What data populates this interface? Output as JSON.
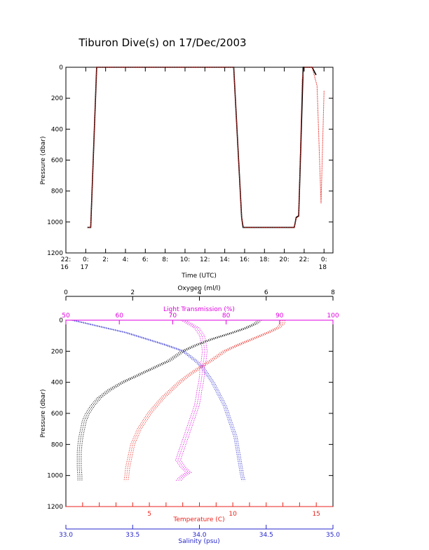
{
  "title": "Tiburon Dive(s) on 17/Dec/2003",
  "colors": {
    "black": "#000000",
    "red": "#e8231c",
    "blue": "#2424cc",
    "magenta": "#e000e0"
  },
  "chart_data": [
    {
      "type": "line",
      "panel": "time-series",
      "xlabel": "Time (UTC)",
      "ylabel": "Pressure (dbar)",
      "xlim": [
        -2,
        24.9
      ],
      "ylim": [
        1200,
        0
      ],
      "x_unit": "hours since 00:00 on 17/Dec (negative = 16/Dec)",
      "x_ticks": [
        {
          "x": -2,
          "line1": "22:",
          "line2": "16"
        },
        {
          "x": 0,
          "line1": "0:",
          "line2": "17"
        },
        {
          "x": 2,
          "line1": "2:",
          "line2": ""
        },
        {
          "x": 4,
          "line1": "4:",
          "line2": ""
        },
        {
          "x": 6,
          "line1": "6:",
          "line2": ""
        },
        {
          "x": 8,
          "line1": "8:",
          "line2": ""
        },
        {
          "x": 10,
          "line1": "10:",
          "line2": ""
        },
        {
          "x": 12,
          "line1": "12:",
          "line2": ""
        },
        {
          "x": 14,
          "line1": "14:",
          "line2": ""
        },
        {
          "x": 16,
          "line1": "16:",
          "line2": ""
        },
        {
          "x": 18,
          "line1": "18:",
          "line2": ""
        },
        {
          "x": 20,
          "line1": "20:",
          "line2": ""
        },
        {
          "x": 22,
          "line1": "22:",
          "line2": ""
        },
        {
          "x": 24,
          "line1": "0:",
          "line2": "18"
        }
      ],
      "y_ticks": [
        0,
        200,
        400,
        600,
        800,
        1000,
        1200
      ],
      "series": [
        {
          "color": "#000000",
          "x": [
            0.15,
            0.5,
            1.1,
            14.9,
            15.7,
            15.85,
            21.0,
            21.2,
            21.45,
            21.9,
            22.8,
            23.2
          ],
          "y": [
            1035,
            1035,
            0,
            0,
            970,
            1035,
            1035,
            970,
            960,
            0,
            0,
            50
          ]
        },
        {
          "color": "#e8231c",
          "x": [
            0.15,
            0.5,
            1.1,
            14.9,
            15.7,
            15.9,
            21.0,
            21.2,
            21.45,
            21.8,
            22.0,
            22.8,
            23.3,
            23.7,
            24.0
          ],
          "y": [
            1035,
            1035,
            0,
            0,
            970,
            1035,
            1035,
            975,
            965,
            80,
            0,
            0,
            120,
            880,
            150
          ]
        }
      ]
    },
    {
      "type": "scatter",
      "panel": "profiles",
      "ylabel": "Pressure (dbar)",
      "ylim": [
        1200,
        0
      ],
      "y_ticks": [
        0,
        200,
        400,
        600,
        800,
        1000,
        1200
      ],
      "axes": [
        {
          "name": "Oxygen (ml/l)",
          "color": "#000000",
          "position": "top",
          "range": [
            0,
            8
          ],
          "ticks": [
            "0",
            "2",
            "4",
            "6",
            "8"
          ]
        },
        {
          "name": "Light Transmission (%)",
          "color": "#e000e0",
          "position": "top-inner",
          "range": [
            50,
            100
          ],
          "ticks": [
            "50",
            "60",
            "70",
            "80",
            "90",
            "100"
          ]
        },
        {
          "name": "Temperature (C)",
          "color": "#e8231c",
          "position": "bottom",
          "range": [
            0,
            16
          ],
          "ticks": [
            "5",
            "10",
            "15"
          ],
          "tick_values": [
            5,
            10,
            15
          ]
        },
        {
          "name": "Salinity (psu)",
          "color": "#2424cc",
          "position": "bottom-outer",
          "range": [
            33.0,
            35.0
          ],
          "ticks": [
            "33.0",
            "33.5",
            "34.0",
            "34.5",
            "35.0"
          ]
        }
      ],
      "series": [
        {
          "variable": "oxygen",
          "color": "#000000",
          "pressure": [
            0,
            20,
            50,
            80,
            120,
            160,
            200,
            260,
            300,
            350,
            400,
            450,
            500,
            550,
            600,
            650,
            700,
            750,
            800,
            850,
            900,
            950,
            1000,
            1035
          ],
          "value": [
            5.8,
            5.7,
            5.4,
            5.0,
            4.4,
            3.9,
            3.5,
            3.1,
            2.7,
            2.2,
            1.7,
            1.3,
            1.0,
            0.8,
            0.65,
            0.55,
            0.5,
            0.45,
            0.42,
            0.4,
            0.4,
            0.4,
            0.42,
            0.42
          ]
        },
        {
          "variable": "temperature",
          "color": "#e8231c",
          "pressure": [
            0,
            20,
            50,
            80,
            120,
            160,
            200,
            260,
            300,
            350,
            400,
            450,
            500,
            550,
            600,
            650,
            700,
            750,
            800,
            850,
            900,
            950,
            1000,
            1035
          ],
          "value": [
            13.0,
            13.0,
            12.7,
            12.1,
            11.2,
            10.3,
            9.5,
            8.7,
            8.1,
            7.4,
            6.8,
            6.3,
            5.8,
            5.4,
            5.0,
            4.7,
            4.4,
            4.2,
            4.0,
            3.9,
            3.8,
            3.7,
            3.65,
            3.6
          ]
        },
        {
          "variable": "salinity",
          "color": "#2424cc",
          "pressure": [
            0,
            20,
            50,
            80,
            120,
            160,
            200,
            260,
            300,
            350,
            400,
            450,
            500,
            550,
            600,
            650,
            700,
            750,
            800,
            850,
            900,
            950,
            1000,
            1035
          ],
          "value": [
            33.05,
            33.15,
            33.3,
            33.45,
            33.6,
            33.75,
            33.88,
            33.97,
            34.02,
            34.06,
            34.1,
            34.13,
            34.16,
            34.19,
            34.21,
            34.23,
            34.25,
            34.27,
            34.28,
            34.29,
            34.3,
            34.31,
            34.32,
            34.33
          ]
        },
        {
          "variable": "light_transmission",
          "color": "#e000e0",
          "pressure": [
            0,
            20,
            50,
            100,
            150,
            200,
            260,
            300,
            350,
            400,
            450,
            500,
            550,
            600,
            650,
            700,
            750,
            800,
            850,
            900,
            950,
            980,
            1000,
            1035
          ],
          "value": [
            72.0,
            73.0,
            74.5,
            75.5,
            75.8,
            76.0,
            75.8,
            75.5,
            75.5,
            75.3,
            75.0,
            74.8,
            74.5,
            74.0,
            73.5,
            73.0,
            72.5,
            72.0,
            71.5,
            71.0,
            72.0,
            73.0,
            72.0,
            71.0
          ]
        }
      ]
    }
  ]
}
